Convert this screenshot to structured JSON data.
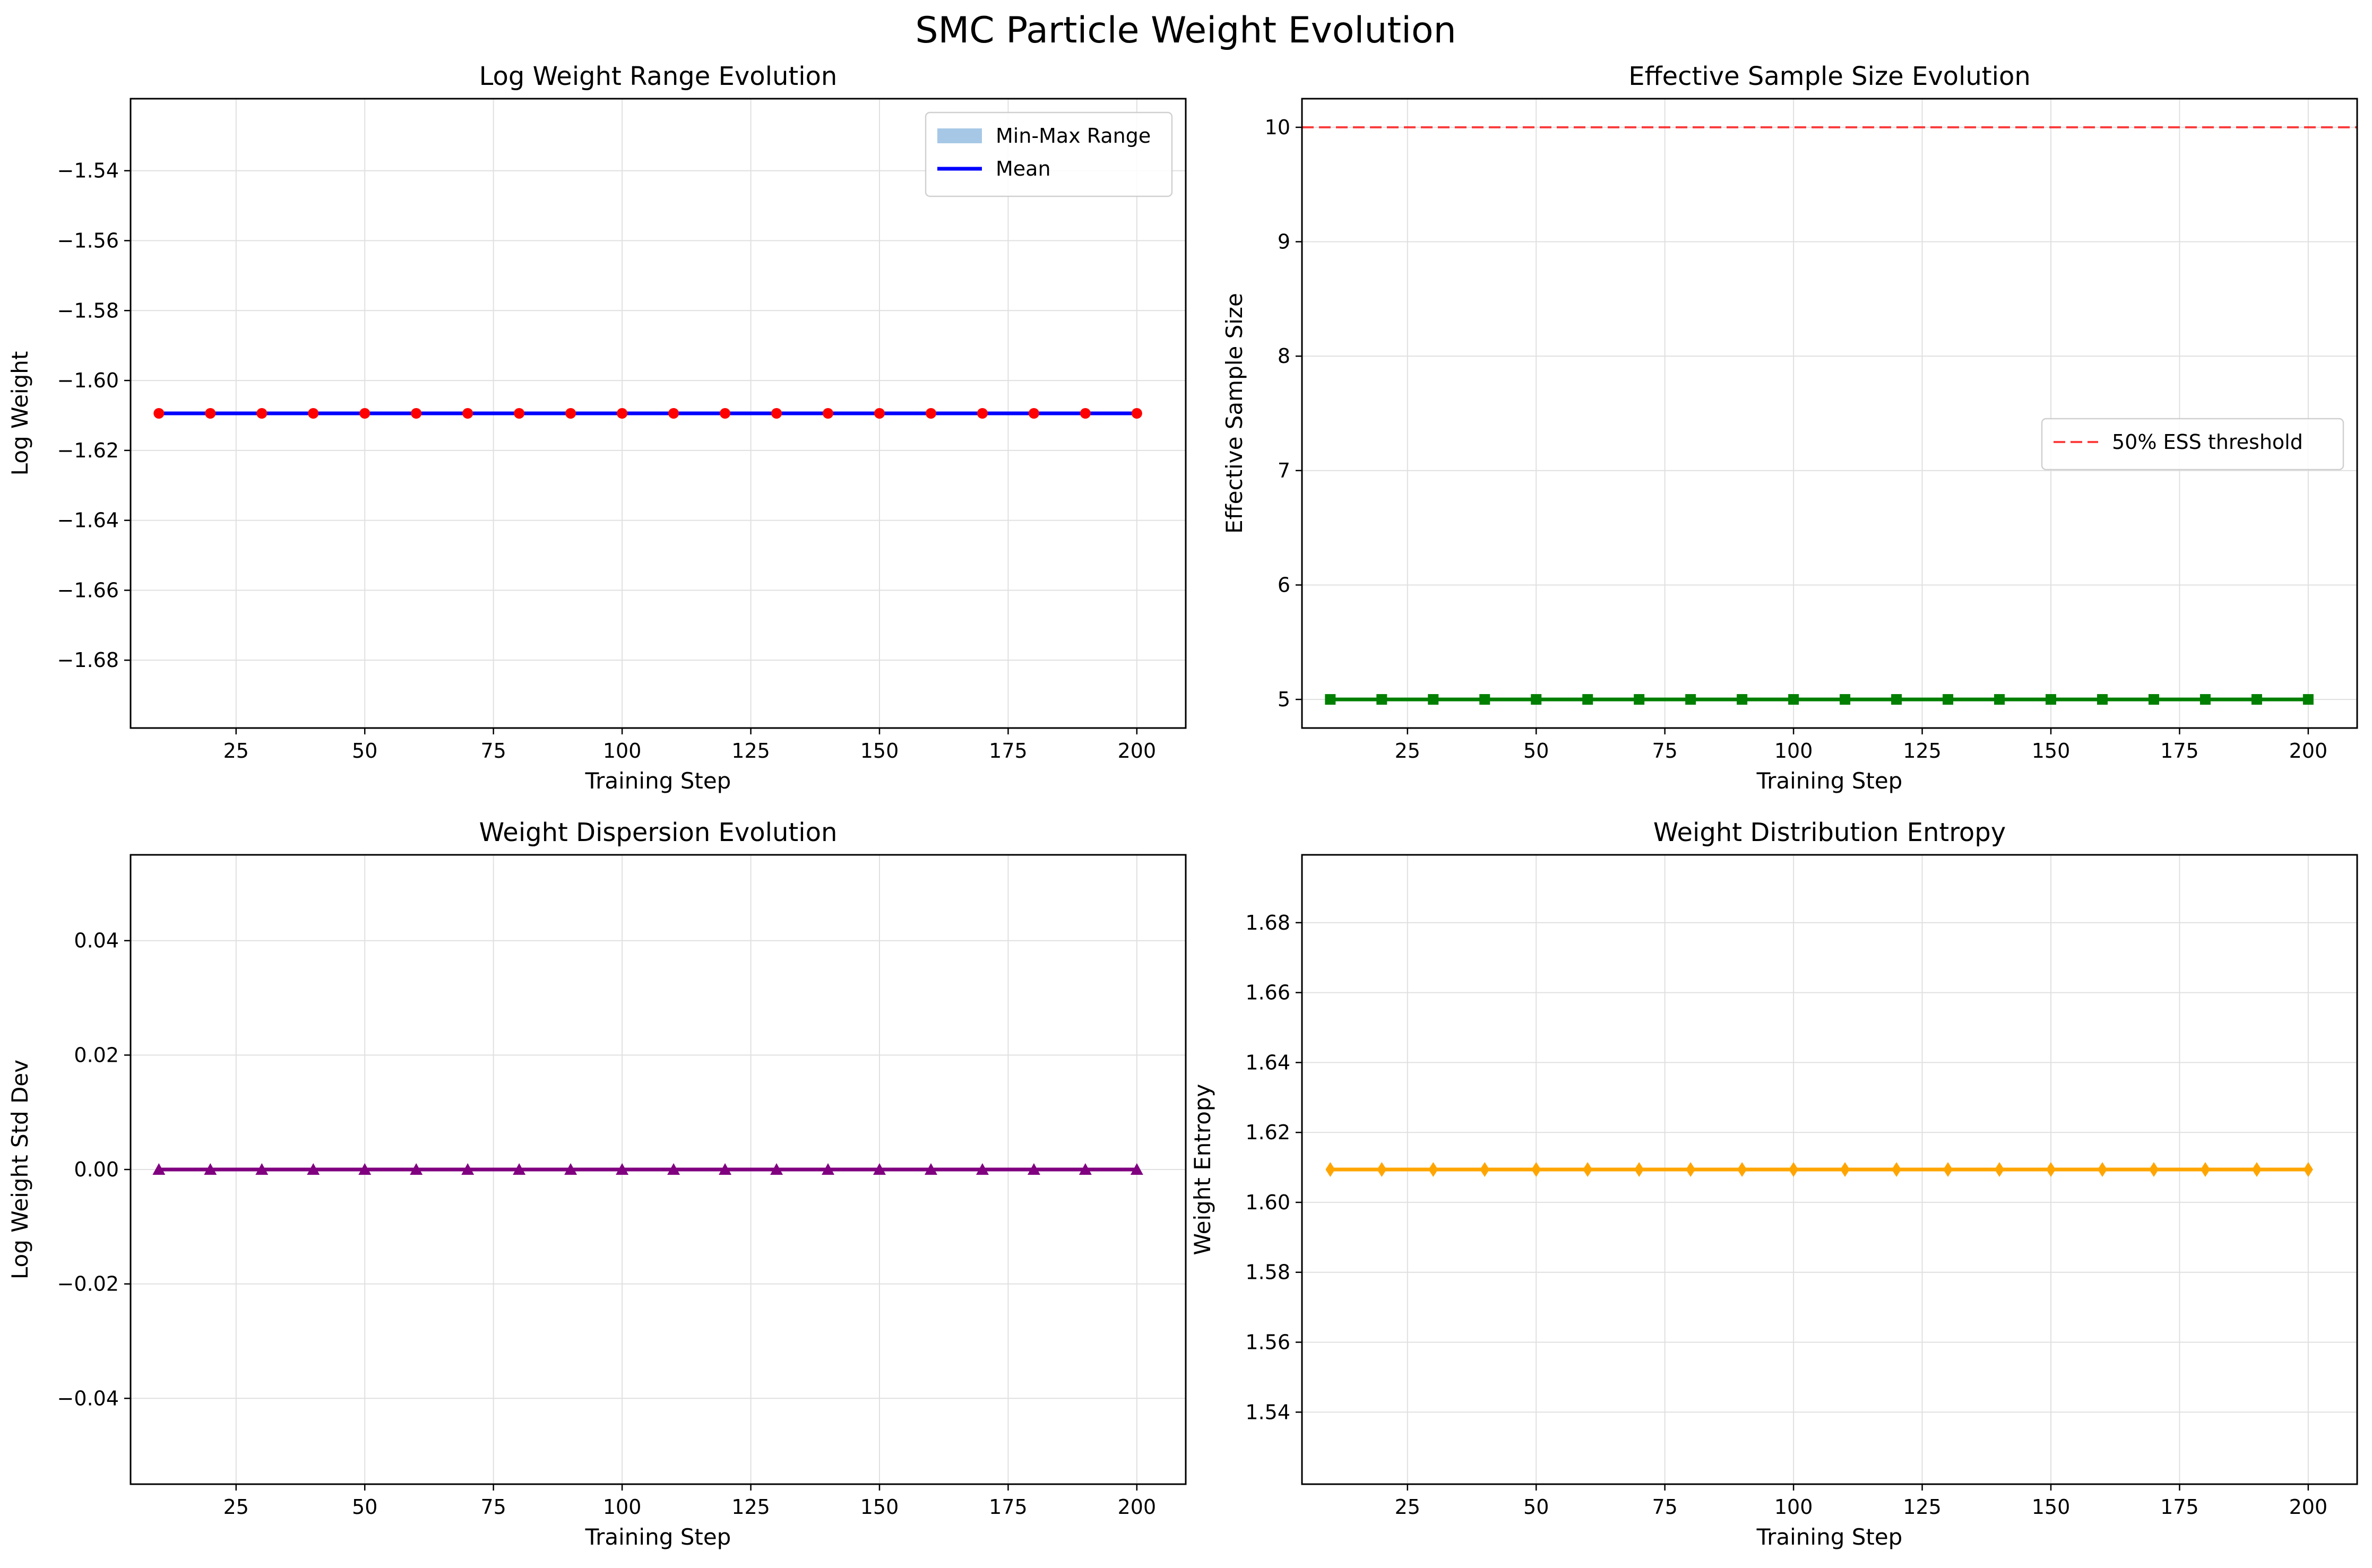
{
  "figure": {
    "title": "SMC Particle Weight Evolution"
  },
  "colors": {
    "mean_line": "#0000ff",
    "mean_markers": "#ff0000",
    "range_fill": "#a6c8e6",
    "ess_line": "#007f00",
    "threshold": "#ff0000",
    "std_line": "#800080",
    "entropy_line": "#ffa500",
    "grid": "#e0e0e0"
  },
  "chart_data": [
    {
      "type": "line",
      "title": "Log Weight Range Evolution",
      "xlabel": "Training Step",
      "ylabel": "Log Weight",
      "xlim": [
        4.5,
        209.5
      ],
      "ylim": [
        -1.6994,
        -1.5194
      ],
      "xticks": [
        25,
        50,
        75,
        100,
        125,
        150,
        175,
        200
      ],
      "yticks": [
        -1.68,
        -1.66,
        -1.64,
        -1.62,
        -1.6,
        -1.58,
        -1.56,
        -1.54
      ],
      "ytick_labels": [
        "−1.68",
        "−1.66",
        "−1.64",
        "−1.62",
        "−1.60",
        "−1.58",
        "−1.56",
        "−1.54"
      ],
      "grid": true,
      "legend": {
        "position": "top-right",
        "entries": [
          "Min-Max Range",
          "Mean"
        ]
      },
      "x": [
        10,
        20,
        30,
        40,
        50,
        60,
        70,
        80,
        90,
        100,
        110,
        120,
        130,
        140,
        150,
        160,
        170,
        180,
        190,
        200
      ],
      "series": [
        {
          "name": "Min-Max Range",
          "kind": "band",
          "min": -1.6094,
          "max": -1.6094
        },
        {
          "name": "Mean",
          "values": [
            -1.6094,
            -1.6094,
            -1.6094,
            -1.6094,
            -1.6094,
            -1.6094,
            -1.6094,
            -1.6094,
            -1.6094,
            -1.6094,
            -1.6094,
            -1.6094,
            -1.6094,
            -1.6094,
            -1.6094,
            -1.6094,
            -1.6094,
            -1.6094,
            -1.6094,
            -1.6094
          ],
          "marker": "circle"
        }
      ]
    },
    {
      "type": "line",
      "title": "Effective Sample Size Evolution",
      "xlabel": "Training Step",
      "ylabel": "Effective Sample Size",
      "xlim": [
        4.5,
        209.5
      ],
      "ylim": [
        4.75,
        10.25
      ],
      "xticks": [
        25,
        50,
        75,
        100,
        125,
        150,
        175,
        200
      ],
      "yticks": [
        5,
        6,
        7,
        8,
        9,
        10
      ],
      "ytick_labels": [
        "5",
        "6",
        "7",
        "8",
        "9",
        "10"
      ],
      "grid": true,
      "legend": {
        "position": "center-right",
        "entries": [
          "50% ESS threshold"
        ]
      },
      "x": [
        10,
        20,
        30,
        40,
        50,
        60,
        70,
        80,
        90,
        100,
        110,
        120,
        130,
        140,
        150,
        160,
        170,
        180,
        190,
        200
      ],
      "series": [
        {
          "name": "",
          "values": [
            5,
            5,
            5,
            5,
            5,
            5,
            5,
            5,
            5,
            5,
            5,
            5,
            5,
            5,
            5,
            5,
            5,
            5,
            5,
            5
          ],
          "marker": "square"
        },
        {
          "name": "50% ESS threshold",
          "kind": "hline",
          "y": 10
        }
      ]
    },
    {
      "type": "line",
      "title": "Weight Dispersion Evolution",
      "xlabel": "Training Step",
      "ylabel": "Log Weight Std Dev",
      "xlim": [
        4.5,
        209.5
      ],
      "ylim": [
        -0.055,
        0.055
      ],
      "xticks": [
        25,
        50,
        75,
        100,
        125,
        150,
        175,
        200
      ],
      "yticks": [
        -0.04,
        -0.02,
        0.0,
        0.02,
        0.04
      ],
      "ytick_labels": [
        "−0.04",
        "−0.02",
        "0.00",
        "0.02",
        "0.04"
      ],
      "grid": true,
      "x": [
        10,
        20,
        30,
        40,
        50,
        60,
        70,
        80,
        90,
        100,
        110,
        120,
        130,
        140,
        150,
        160,
        170,
        180,
        190,
        200
      ],
      "series": [
        {
          "name": "",
          "values": [
            0,
            0,
            0,
            0,
            0,
            0,
            0,
            0,
            0,
            0,
            0,
            0,
            0,
            0,
            0,
            0,
            0,
            0,
            0,
            0
          ],
          "marker": "triangle"
        }
      ]
    },
    {
      "type": "line",
      "title": "Weight Distribution Entropy",
      "xlabel": "Training Step",
      "ylabel": "Weight Entropy",
      "xlim": [
        4.5,
        209.5
      ],
      "ylim": [
        1.5194,
        1.6994
      ],
      "xticks": [
        25,
        50,
        75,
        100,
        125,
        150,
        175,
        200
      ],
      "yticks": [
        1.54,
        1.56,
        1.58,
        1.6,
        1.62,
        1.64,
        1.66,
        1.68
      ],
      "ytick_labels": [
        "1.54",
        "1.56",
        "1.58",
        "1.60",
        "1.62",
        "1.64",
        "1.66",
        "1.68"
      ],
      "grid": true,
      "x": [
        10,
        20,
        30,
        40,
        50,
        60,
        70,
        80,
        90,
        100,
        110,
        120,
        130,
        140,
        150,
        160,
        170,
        180,
        190,
        200
      ],
      "series": [
        {
          "name": "",
          "values": [
            1.6094,
            1.6094,
            1.6094,
            1.6094,
            1.6094,
            1.6094,
            1.6094,
            1.6094,
            1.6094,
            1.6094,
            1.6094,
            1.6094,
            1.6094,
            1.6094,
            1.6094,
            1.6094,
            1.6094,
            1.6094,
            1.6094,
            1.6094
          ],
          "marker": "diamond"
        }
      ]
    }
  ]
}
